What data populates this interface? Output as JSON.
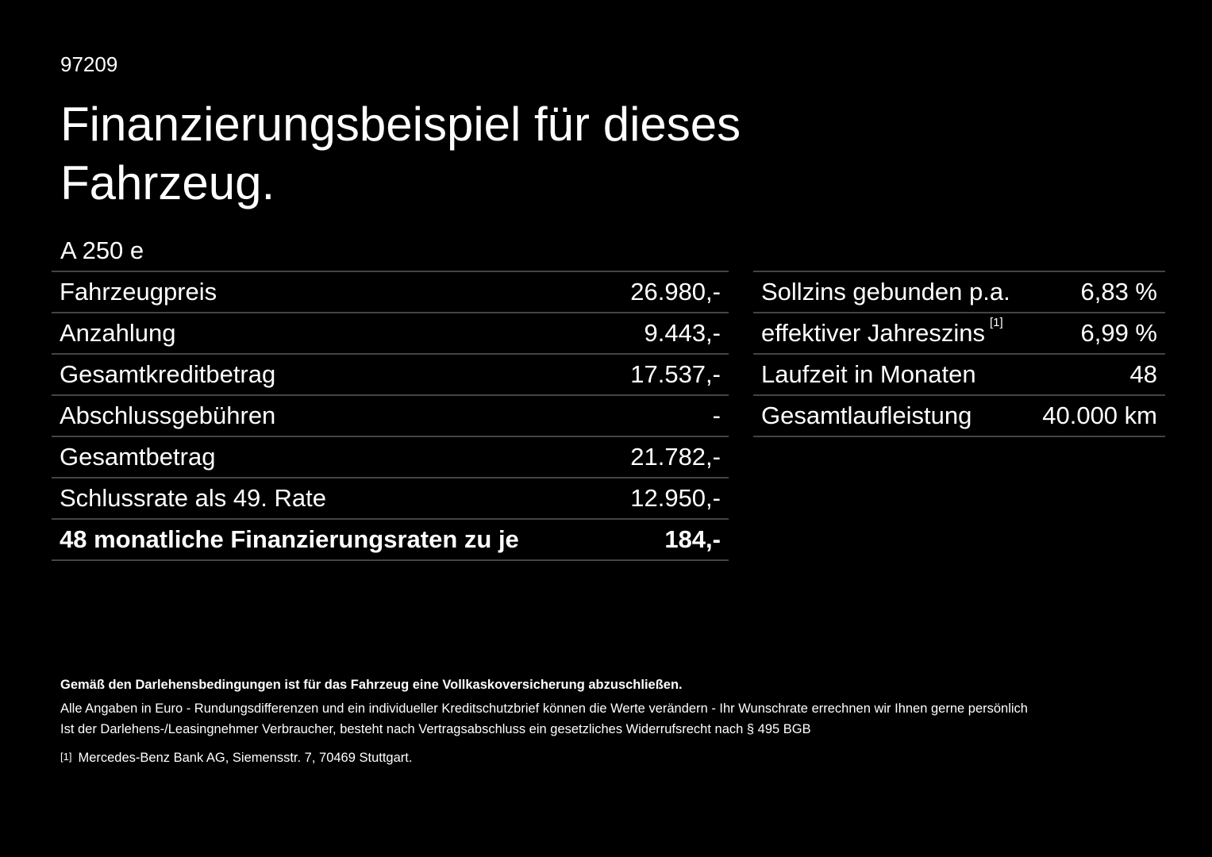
{
  "header": {
    "code": "97209",
    "title_line1": "Finanzierungsbeispiel für dieses",
    "title_line2": "Fahrzeug.",
    "model": "A 250 e"
  },
  "left_table": {
    "rows": [
      [
        "Fahrzeugpreis",
        "26.980,-"
      ],
      [
        "Anzahlung",
        "9.443,-"
      ],
      [
        "Gesamtkreditbetrag",
        "17.537,-"
      ],
      [
        "Abschlussgebühren",
        "-"
      ],
      [
        "Gesamtbetrag",
        "21.782,-"
      ],
      [
        "Schlussrate als 49. Rate",
        "12.950,-"
      ],
      [
        "48 monatliche Finanzierungsraten zu je",
        "184,-"
      ]
    ]
  },
  "right_table": {
    "rows": [
      [
        "Sollzins gebunden p.a.",
        "6,83 %"
      ],
      [
        "effektiver Jahreszins",
        "6,99 %"
      ],
      [
        "Laufzeit in Monaten",
        "48"
      ],
      [
        "Gesamtlaufleistung",
        "40.000 km"
      ]
    ],
    "footnote_ref": "[1]"
  },
  "notes": {
    "bold": "Gemäß den Darlehensbedingungen ist für das Fahrzeug eine Vollkaskoversicherung abzuschließen.",
    "line1": "Alle Angaben in Euro - Rundungsdifferenzen und ein individueller Kreditschutzbrief können die Werte verändern - Ihr Wunschrate errechnen wir Ihnen gerne persönlich",
    "line2": "Ist der Darlehens-/Leasingnehmer Verbraucher, besteht nach Vertragsabschluss ein gesetzliches Widerrufsrecht nach § 495 BGB",
    "footnote_mark": "[1]",
    "footnote_text": "Mercedes-Benz Bank AG, Siemensstr. 7, 70469 Stuttgart."
  }
}
